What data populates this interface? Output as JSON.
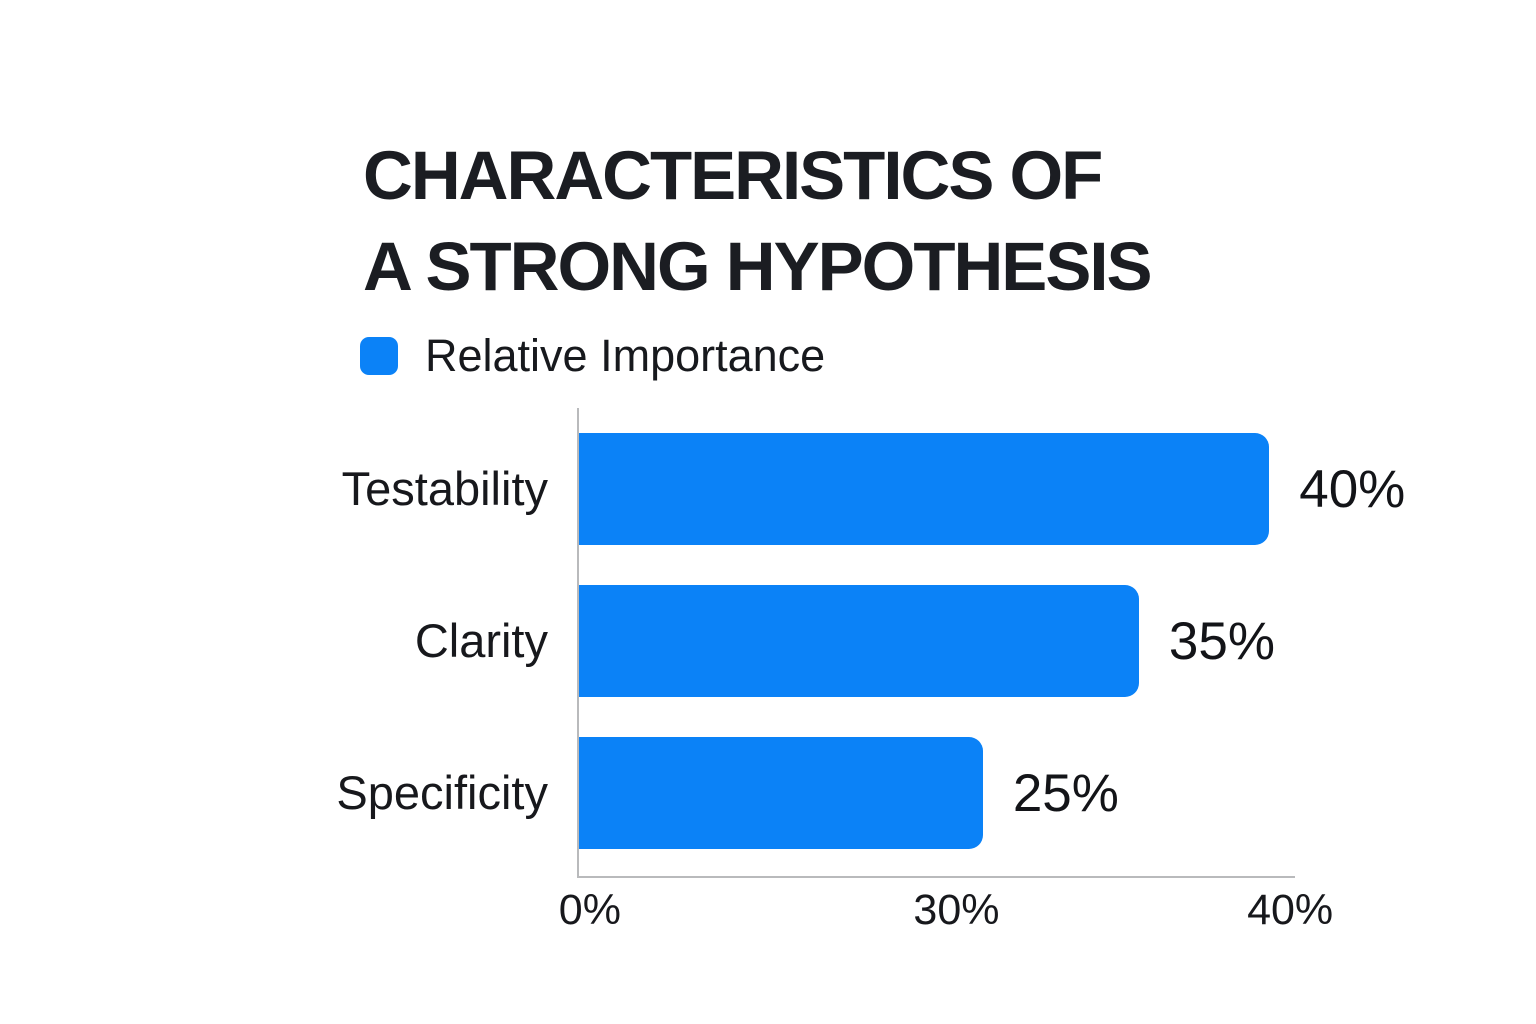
{
  "title": {
    "line1": "CHARACTERISTICS OF",
    "line2": "A STRONG HYPOTHESIS"
  },
  "legend": {
    "label": "Relative Importance",
    "swatch_color": "#0b82f7"
  },
  "chart_data": {
    "type": "bar",
    "orientation": "horizontal",
    "title": "CHARACTERISTICS OF A STRONG HYPOTHESIS",
    "categories": [
      "Testability",
      "Clarity",
      "Specificity"
    ],
    "series": [
      {
        "name": "Relative Importance",
        "values": [
          40,
          35,
          25
        ]
      }
    ],
    "value_labels": [
      "40%",
      "35%",
      "25%"
    ],
    "x_ticks": [
      {
        "label": "0%",
        "value": 0,
        "pos_pct": 1.8
      },
      {
        "label": "30%",
        "value": 30,
        "pos_pct": 53.0
      },
      {
        "label": "40%",
        "value": 40,
        "pos_pct": 99.6
      }
    ],
    "xlim": [
      0,
      41.5
    ],
    "grid": false,
    "legend_position": "top-left",
    "bar_color": "#0b82f7",
    "axis_color": "#b9babc",
    "text_color": "#17181c",
    "bar_width_pcts": [
      96.4,
      78.2,
      56.4
    ]
  }
}
